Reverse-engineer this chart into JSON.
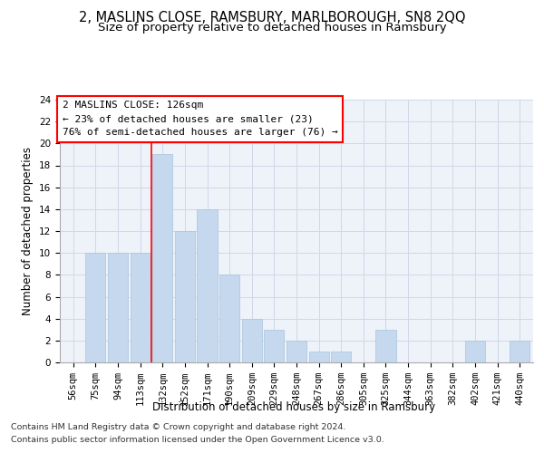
{
  "title1": "2, MASLINS CLOSE, RAMSBURY, MARLBOROUGH, SN8 2QQ",
  "title2": "Size of property relative to detached houses in Ramsbury",
  "xlabel": "Distribution of detached houses by size in Ramsbury",
  "ylabel": "Number of detached properties",
  "categories": [
    "56sqm",
    "75sqm",
    "94sqm",
    "113sqm",
    "132sqm",
    "152sqm",
    "171sqm",
    "190sqm",
    "209sqm",
    "229sqm",
    "248sqm",
    "267sqm",
    "286sqm",
    "305sqm",
    "325sqm",
    "344sqm",
    "363sqm",
    "382sqm",
    "402sqm",
    "421sqm",
    "440sqm"
  ],
  "values": [
    0,
    10,
    10,
    10,
    19,
    12,
    14,
    8,
    4,
    3,
    2,
    1,
    1,
    0,
    3,
    0,
    0,
    0,
    2,
    0,
    2
  ],
  "bar_color": "#c5d8ed",
  "bar_edge_color": "#a8c4de",
  "red_line_x": 3.5,
  "ylim": [
    0,
    24
  ],
  "yticks": [
    0,
    2,
    4,
    6,
    8,
    10,
    12,
    14,
    16,
    18,
    20,
    22,
    24
  ],
  "annotation_line1": "2 MASLINS CLOSE: 126sqm",
  "annotation_line2": "← 23% of detached houses are smaller (23)",
  "annotation_line3": "76% of semi-detached houses are larger (76) →",
  "footnote1": "Contains HM Land Registry data © Crown copyright and database right 2024.",
  "footnote2": "Contains public sector information licensed under the Open Government Licence v3.0.",
  "background_color": "#eef2f9",
  "grid_color": "#d0d8e8",
  "title1_fontsize": 10.5,
  "title2_fontsize": 9.5,
  "axis_label_fontsize": 8.5,
  "tick_fontsize": 7.5,
  "annotation_fontsize": 8,
  "footnote_fontsize": 6.8
}
